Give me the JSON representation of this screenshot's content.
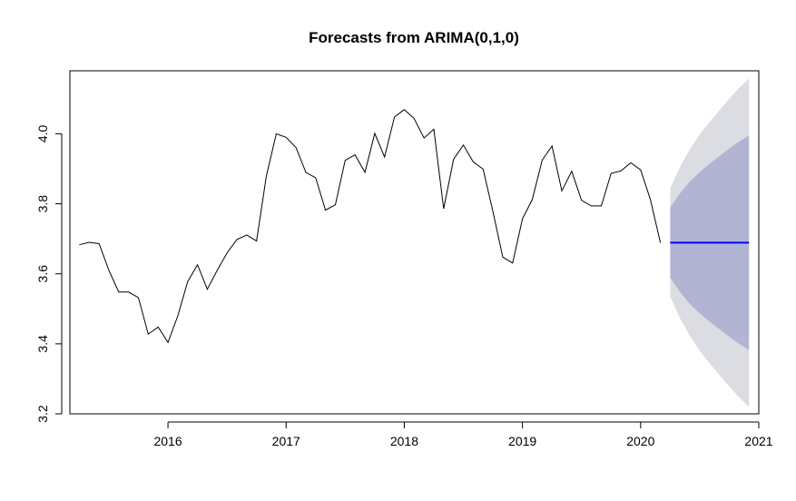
{
  "chart_data": {
    "type": "line",
    "title": "Forecasts from ARIMA(0,1,0)",
    "xlabel": "",
    "ylabel": "",
    "xlim": [
      2015.17,
      2021.0
    ],
    "ylim": [
      3.2,
      4.18
    ],
    "x_ticks": [
      2016,
      2017,
      2018,
      2019,
      2020,
      2021
    ],
    "y_ticks": [
      3.2,
      3.4,
      3.6,
      3.8,
      4.0
    ],
    "y_tick_labels": [
      "3.2",
      "3.4",
      "3.6",
      "3.8",
      "4.0"
    ],
    "grid": false,
    "legend": "none",
    "series": [
      {
        "type": "line",
        "color": "#000000",
        "x": [
          2015.25,
          2015.333,
          2015.417,
          2015.5,
          2015.583,
          2015.667,
          2015.75,
          2015.833,
          2015.917,
          2016.0,
          2016.083,
          2016.167,
          2016.25,
          2016.333,
          2016.417,
          2016.5,
          2016.583,
          2016.667,
          2016.75,
          2016.833,
          2016.917,
          2017.0,
          2017.083,
          2017.167,
          2017.25,
          2017.333,
          2017.417,
          2017.5,
          2017.583,
          2017.667,
          2017.75,
          2017.833,
          2017.917,
          2018.0,
          2018.083,
          2018.167,
          2018.25,
          2018.333,
          2018.417,
          2018.5,
          2018.583,
          2018.667,
          2018.75,
          2018.833,
          2018.917,
          2019.0,
          2019.083,
          2019.167,
          2019.25,
          2019.333,
          2019.417,
          2019.5,
          2019.583,
          2019.667,
          2019.75,
          2019.833,
          2019.917,
          2020.0,
          2020.083,
          2020.167
        ],
        "y": [
          3.683,
          3.69,
          3.686,
          3.61,
          3.548,
          3.548,
          3.532,
          3.428,
          3.448,
          3.404,
          3.48,
          3.578,
          3.626,
          3.556,
          3.61,
          3.66,
          3.698,
          3.711,
          3.694,
          3.88,
          4.0,
          3.99,
          3.961,
          3.89,
          3.874,
          3.782,
          3.797,
          3.924,
          3.94,
          3.89,
          4.001,
          3.934,
          4.048,
          4.069,
          4.044,
          3.988,
          4.013,
          3.786,
          3.927,
          3.968,
          3.92,
          3.899,
          3.778,
          3.648,
          3.631,
          3.757,
          3.812,
          3.925,
          3.965,
          3.837,
          3.893,
          3.81,
          3.794,
          3.794,
          3.887,
          3.894,
          3.917,
          3.897,
          3.812,
          3.689
        ]
      },
      {
        "type": "line",
        "color": "#0000ff",
        "x": [
          2020.25,
          2020.333,
          2020.417,
          2020.5,
          2020.583,
          2020.667,
          2020.75,
          2020.833,
          2020.917
        ],
        "y": [
          3.689,
          3.689,
          3.689,
          3.689,
          3.689,
          3.689,
          3.689,
          3.689,
          3.689
        ]
      }
    ],
    "bands": [
      {
        "color": "#dcdce3",
        "x": [
          2020.25,
          2020.333,
          2020.417,
          2020.5,
          2020.583,
          2020.667,
          2020.75,
          2020.833,
          2020.917
        ],
        "lower": [
          3.535,
          3.473,
          3.422,
          3.38,
          3.345,
          3.311,
          3.278,
          3.247,
          3.22
        ],
        "upper": [
          3.843,
          3.905,
          3.956,
          3.998,
          4.033,
          4.067,
          4.1,
          4.131,
          4.158
        ]
      },
      {
        "color": "#b1b5d3",
        "x": [
          2020.25,
          2020.333,
          2020.417,
          2020.5,
          2020.583,
          2020.667,
          2020.75,
          2020.833,
          2020.917
        ],
        "lower": [
          3.589,
          3.548,
          3.514,
          3.487,
          3.464,
          3.442,
          3.42,
          3.4,
          3.383
        ],
        "upper": [
          3.789,
          3.83,
          3.864,
          3.891,
          3.914,
          3.936,
          3.958,
          3.978,
          3.995
        ]
      }
    ]
  }
}
